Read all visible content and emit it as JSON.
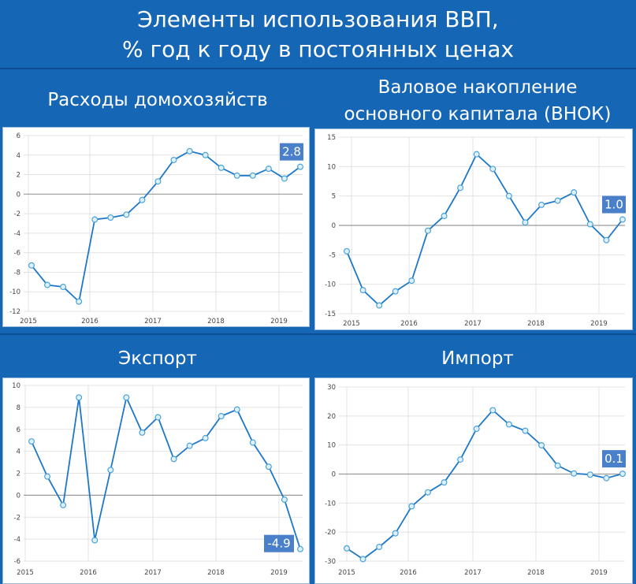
{
  "header": {
    "line1": "Элементы использования ВВП,",
    "line2": "% год к году в постоянных ценах"
  },
  "colors": {
    "background": "#1666b6",
    "series": "#1e78c8",
    "marker_fill": "#dff0fb",
    "label_bg": "#4a7fc9"
  },
  "panels": [
    {
      "title1": "Расходы домохозяйств",
      "title2": ""
    },
    {
      "title1": "Валовое накопление",
      "title2": "основного капитала (ВНОК)"
    },
    {
      "title1": "Экспорт",
      "title2": ""
    },
    {
      "title1": "Импорт",
      "title2": ""
    }
  ],
  "chart_data": [
    {
      "type": "line",
      "title": "Расходы домохозяйств",
      "x_ticks": [
        "2015",
        "2016",
        "2017",
        "2018",
        "2019"
      ],
      "ylim": [
        -12,
        6
      ],
      "y_ticks": [
        -12,
        -10,
        -8,
        -6,
        -4,
        -2,
        0,
        2,
        4,
        6
      ],
      "grid": true,
      "values": [
        -7.3,
        -9.3,
        -9.5,
        -11.0,
        -2.6,
        -2.4,
        -2.1,
        -0.6,
        1.3,
        3.5,
        4.4,
        4.0,
        2.7,
        1.9,
        1.9,
        2.6,
        1.6,
        2.8
      ],
      "last_label": "2.8"
    },
    {
      "type": "line",
      "title": "Валовое накопление основного капитала (ВНОК)",
      "x_ticks": [
        "2015",
        "2016",
        "2017",
        "2018",
        "2019"
      ],
      "ylim": [
        -15,
        15
      ],
      "y_ticks": [
        -15,
        -10,
        -5,
        0,
        5,
        10,
        15
      ],
      "grid": true,
      "values": [
        -4.4,
        -11.0,
        -13.6,
        -11.2,
        -9.4,
        -0.9,
        1.6,
        6.4,
        12.1,
        9.6,
        5.0,
        0.5,
        3.5,
        4.2,
        5.6,
        0.2,
        -2.5,
        1.0
      ],
      "last_label": "1.0"
    },
    {
      "type": "line",
      "title": "Экспорт",
      "x_ticks": [
        "2015",
        "2016",
        "2017",
        "2018",
        "2019"
      ],
      "ylim": [
        -6,
        10
      ],
      "y_ticks": [
        -6,
        -4,
        -2,
        0,
        2,
        4,
        6,
        8,
        10
      ],
      "grid": true,
      "values": [
        4.9,
        1.7,
        -0.9,
        8.9,
        -4.1,
        2.3,
        8.9,
        5.7,
        7.1,
        3.3,
        4.5,
        5.2,
        7.2,
        7.8,
        4.8,
        2.6,
        -0.4,
        -4.9
      ],
      "last_label": "-4.9"
    },
    {
      "type": "line",
      "title": "Импорт",
      "x_ticks": [
        "2015",
        "2016",
        "2017",
        "2018",
        "2019"
      ],
      "ylim": [
        -30,
        30
      ],
      "y_ticks": [
        -30,
        -20,
        -10,
        0,
        10,
        20,
        30
      ],
      "grid": true,
      "values": [
        -25.6,
        -29.3,
        -25.1,
        -20.4,
        -11.1,
        -6.3,
        -2.9,
        5.0,
        15.6,
        22.0,
        17.1,
        14.9,
        9.9,
        2.9,
        0.2,
        -0.2,
        -1.4,
        0.1
      ],
      "last_label": "0.1"
    }
  ]
}
